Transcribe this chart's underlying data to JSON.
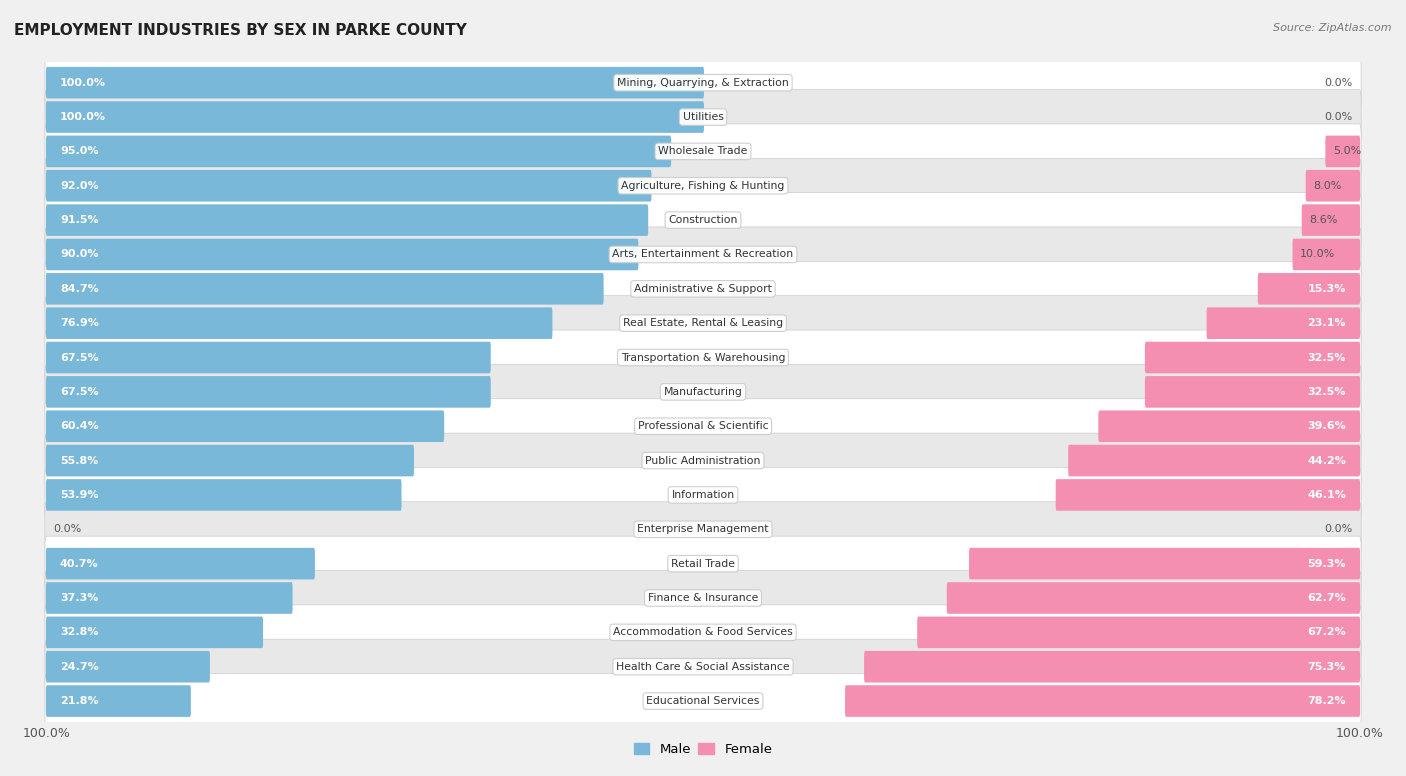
{
  "title": "EMPLOYMENT INDUSTRIES BY SEX IN PARKE COUNTY",
  "source": "Source: ZipAtlas.com",
  "male_color": "#7ab8d9",
  "female_color": "#f48fb1",
  "bg_color": "#f0f0f0",
  "row_color_odd": "#ffffff",
  "row_color_even": "#e8e8e8",
  "categories": [
    "Mining, Quarrying, & Extraction",
    "Utilities",
    "Wholesale Trade",
    "Agriculture, Fishing & Hunting",
    "Construction",
    "Arts, Entertainment & Recreation",
    "Administrative & Support",
    "Real Estate, Rental & Leasing",
    "Transportation & Warehousing",
    "Manufacturing",
    "Professional & Scientific",
    "Public Administration",
    "Information",
    "Enterprise Management",
    "Retail Trade",
    "Finance & Insurance",
    "Accommodation & Food Services",
    "Health Care & Social Assistance",
    "Educational Services"
  ],
  "male_pct": [
    100.0,
    100.0,
    95.0,
    92.0,
    91.5,
    90.0,
    84.7,
    76.9,
    67.5,
    67.5,
    60.4,
    55.8,
    53.9,
    0.0,
    40.7,
    37.3,
    32.8,
    24.7,
    21.8
  ],
  "female_pct": [
    0.0,
    0.0,
    5.0,
    8.0,
    8.6,
    10.0,
    15.3,
    23.1,
    32.5,
    32.5,
    39.6,
    44.2,
    46.1,
    0.0,
    59.3,
    62.7,
    67.2,
    75.3,
    78.2
  ]
}
